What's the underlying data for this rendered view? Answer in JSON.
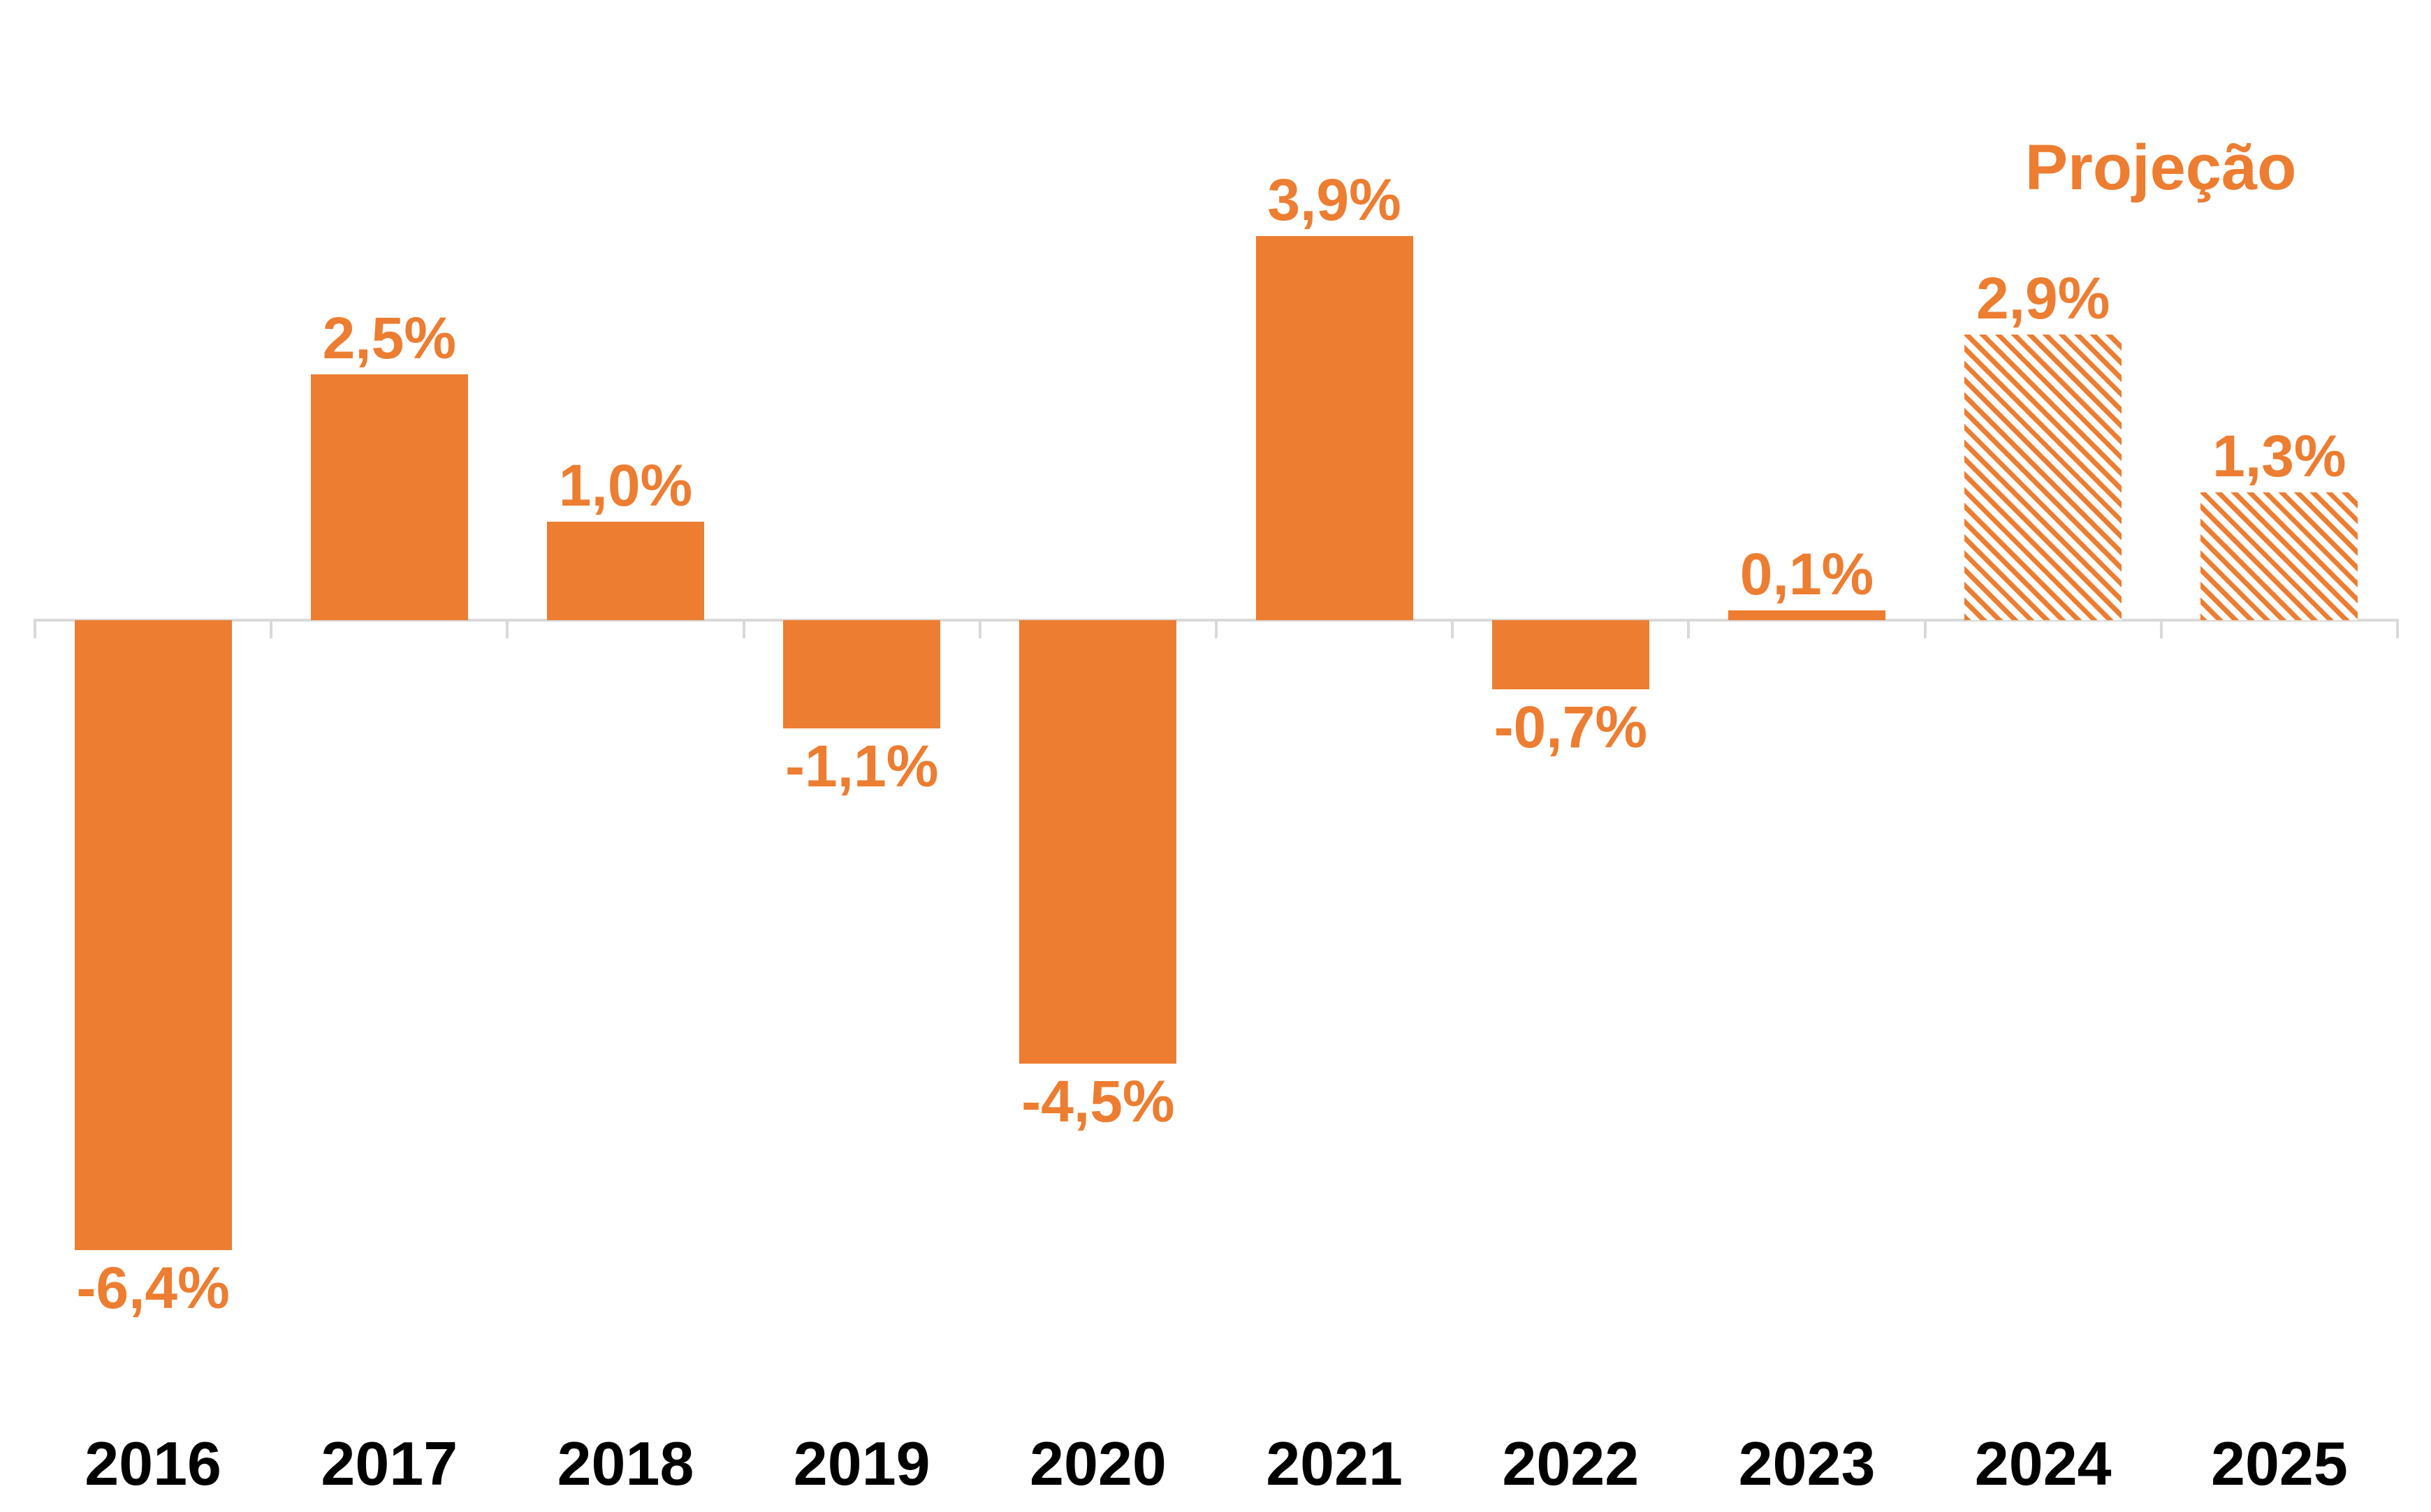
{
  "chart_data": {
    "type": "bar",
    "categories": [
      "2016",
      "2017",
      "2018",
      "2019",
      "2020",
      "2021",
      "2022",
      "2023",
      "2024",
      "2025"
    ],
    "values": [
      -6.4,
      2.5,
      1.0,
      -1.1,
      -4.5,
      3.9,
      -0.7,
      0.1,
      2.9,
      1.3
    ],
    "value_labels": [
      "-6,4%",
      "2,5%",
      "1,0%",
      "-1,1%",
      "-4,5%",
      "3,9%",
      "-0,7%",
      "0,1%",
      "2,9%",
      "1,3%"
    ],
    "projected_flags": [
      false,
      false,
      false,
      false,
      false,
      false,
      false,
      false,
      true,
      true
    ],
    "annotation": "Projeção",
    "title": "",
    "xlabel": "",
    "ylabel": "",
    "ylim": [
      -7.5,
      4.5
    ],
    "grid": false,
    "legend_position": "none",
    "hatch_style": "diagonal-stripes",
    "colors": {
      "bar": "#ED7D31",
      "value_label": "#ED7D31",
      "category_label": "#000000",
      "axis": "#D9D9D9",
      "hatch_background": "#FFFFFF"
    }
  }
}
